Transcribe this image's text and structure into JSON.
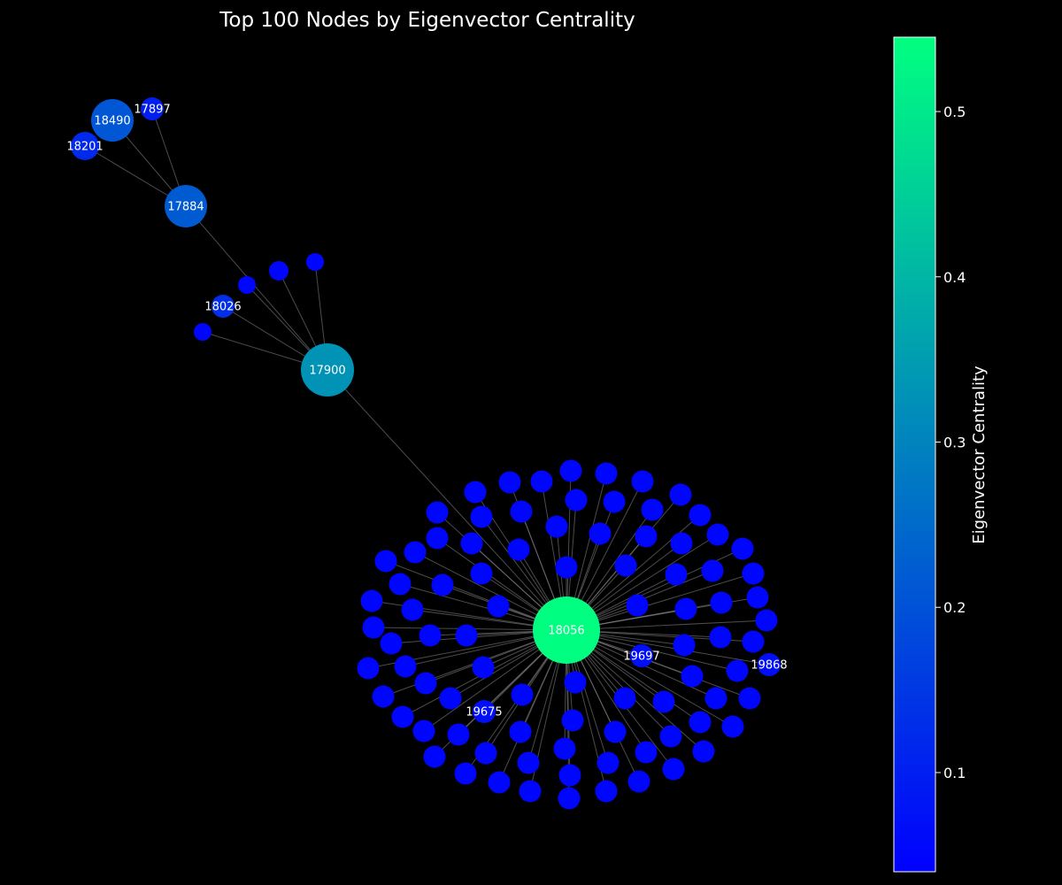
{
  "title": "Top 100 Nodes by Eigenvector Centrality",
  "colorbar": {
    "label": "Eigenvector Centrality",
    "min": 0.04,
    "max": 0.545,
    "ticks": [
      "0.1",
      "0.2",
      "0.3",
      "0.4",
      "0.5"
    ],
    "color_low": "#0000ff",
    "color_high": "#00ff80"
  },
  "chart_data": {
    "type": "network",
    "hub_nodes": [
      {
        "label": "18056",
        "centrality": 0.545
      },
      {
        "label": "17900",
        "centrality": 0.33
      },
      {
        "label": "17884",
        "centrality": 0.22
      },
      {
        "label": "18490",
        "centrality": 0.21
      },
      {
        "label": "17897",
        "centrality": 0.1
      },
      {
        "label": "18201",
        "centrality": 0.12
      },
      {
        "label": "18026",
        "centrality": 0.13
      },
      {
        "label": "19697",
        "centrality": 0.07
      },
      {
        "label": "19868",
        "centrality": 0.07
      },
      {
        "label": "19675",
        "centrality": 0.07
      }
    ],
    "edges": [
      [
        "18490",
        "17884"
      ],
      [
        "17897",
        "17884"
      ],
      [
        "18201",
        "17884"
      ],
      [
        "17884",
        "17900"
      ],
      [
        "18026",
        "17900"
      ],
      [
        "17900",
        "18056"
      ]
    ]
  }
}
